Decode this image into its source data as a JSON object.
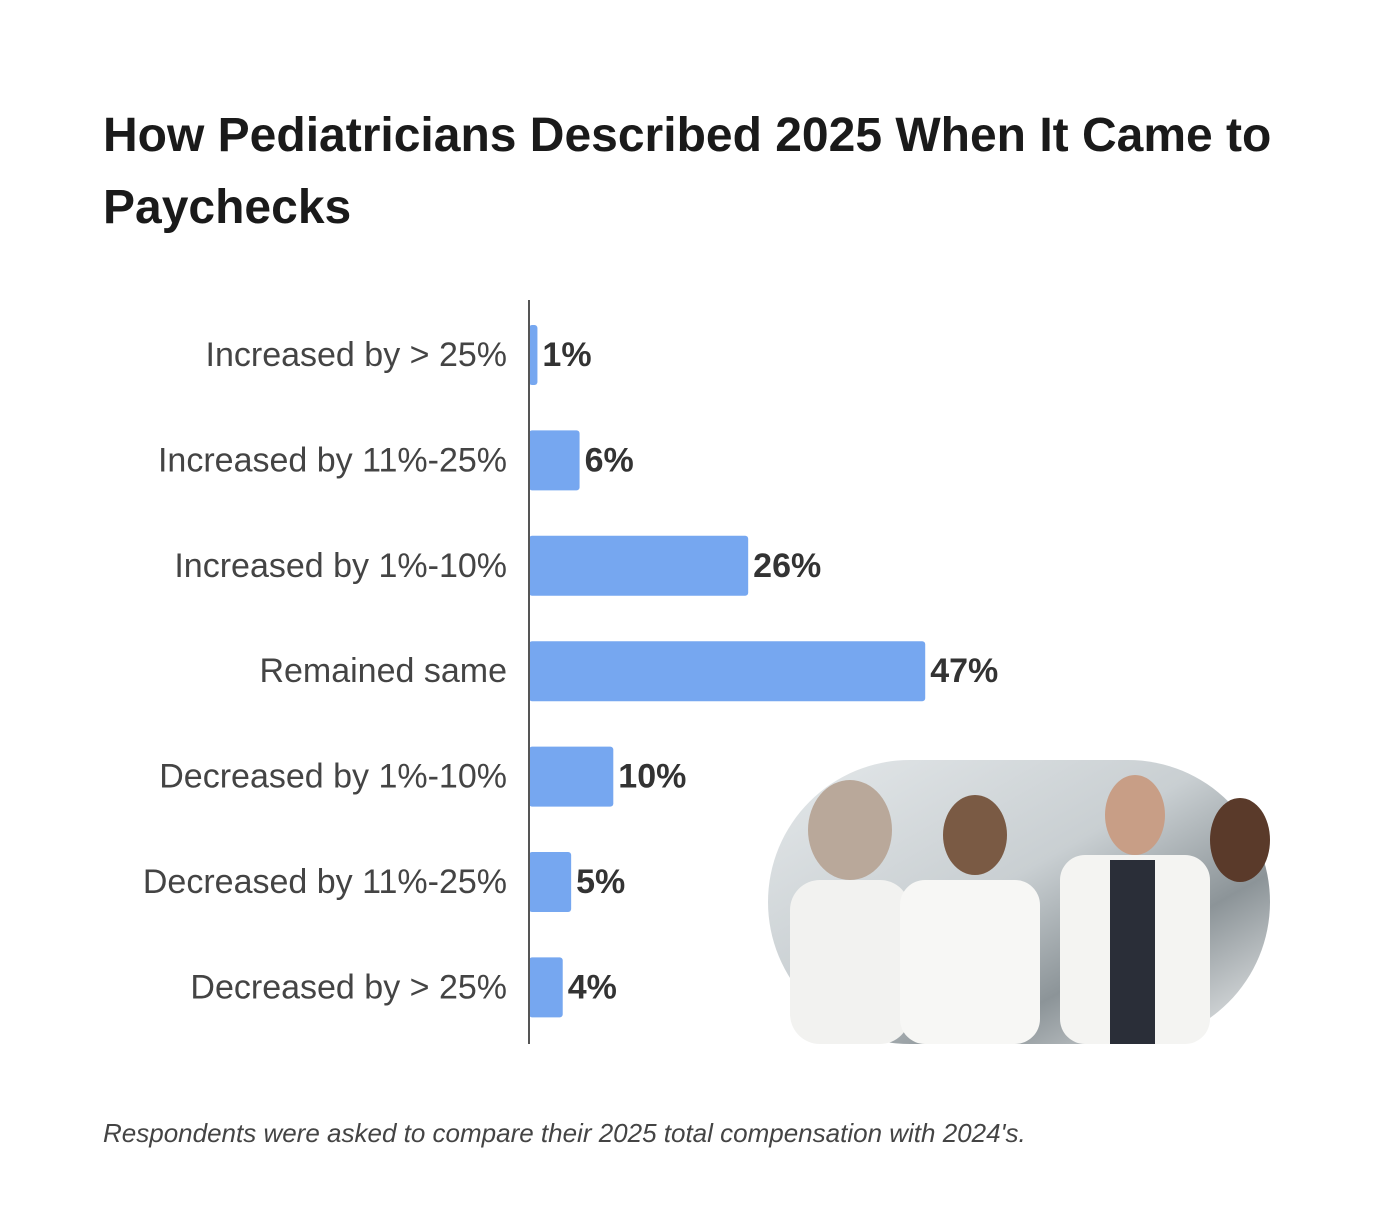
{
  "chart_data": {
    "type": "bar",
    "orientation": "horizontal",
    "title": "How Pediatricians Described 2025 When It Came to Paychecks",
    "categories": [
      "Increased by > 25%",
      "Increased by 11%-25%",
      "Increased by 1%-10%",
      "Remained same",
      "Decreased by 1%-10%",
      "Decreased by 11%-25%",
      "Decreased by > 25%"
    ],
    "values": [
      1,
      6,
      26,
      47,
      10,
      5,
      4
    ],
    "value_labels": [
      "1%",
      "6%",
      "26%",
      "47%",
      "10%",
      "5%",
      "4%"
    ],
    "color": "#76a7f0",
    "xlim": [
      0,
      100
    ],
    "footnote": "Respondents were asked to compare their 2025 total compensation with 2024's."
  }
}
